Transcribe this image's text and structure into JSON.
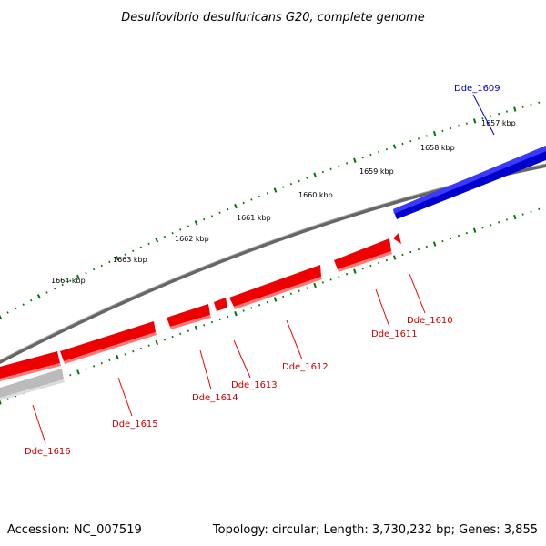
{
  "title": "Desulfovibrio desulfuricans G20, complete genome",
  "footer": {
    "accession": "Accession: NC_007519",
    "summary": "Topology: circular; Length: 3,730,232 bp; Genes: 3,855"
  },
  "colors": {
    "forward_strand": "#0000ee",
    "reverse_strand": "#ee0000",
    "tick": "#007700",
    "backbone": "#777777",
    "faded_gene": "#bbbbbb"
  },
  "scale_labels": [
    "1657 kbp",
    "1658 kbp",
    "1659 kbp",
    "1660 kbp",
    "1661 kbp",
    "1662 kbp",
    "1663 kbp",
    "1664 kbp"
  ],
  "genes": [
    {
      "label": "Dde_1609",
      "strand": "forward",
      "color": "#0000ee"
    },
    {
      "label": "Dde_1610",
      "strand": "reverse",
      "color": "#ee0000"
    },
    {
      "label": "Dde_1611",
      "strand": "reverse",
      "color": "#ee0000"
    },
    {
      "label": "Dde_1612",
      "strand": "reverse",
      "color": "#ee0000"
    },
    {
      "label": "Dde_1613",
      "strand": "reverse",
      "color": "#ee0000"
    },
    {
      "label": "Dde_1614",
      "strand": "reverse",
      "color": "#ee0000"
    },
    {
      "label": "Dde_1615",
      "strand": "reverse",
      "color": "#ee0000"
    },
    {
      "label": "Dde_1616",
      "strand": "reverse",
      "color": "#bbbbbb"
    }
  ]
}
